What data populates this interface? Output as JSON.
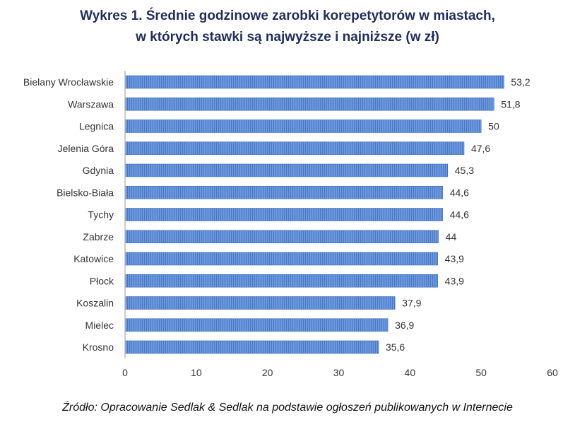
{
  "chart_data": {
    "type": "bar",
    "orientation": "horizontal",
    "title_line1": "Wykres 1. Średnie godzinowe zarobki korepetytorów w miastach,",
    "title_line2": "w których stawki są najwyższe i najniższe (w zł)",
    "categories": [
      "Bielany Wrocławskie",
      "Warszawa",
      "Legnica",
      "Jelenia Góra",
      "Gdynia",
      "Bielsko-Biała",
      "Tychy",
      "Zabrze",
      "Katowice",
      "Płock",
      "Koszalin",
      "Mielec",
      "Krosno"
    ],
    "values": [
      53.2,
      51.8,
      50,
      47.6,
      45.3,
      44.6,
      44.6,
      44,
      43.9,
      43.9,
      37.9,
      36.9,
      35.6
    ],
    "value_labels": [
      "53,2",
      "51,8",
      "50",
      "47,6",
      "45,3",
      "44,6",
      "44,6",
      "44",
      "43,9",
      "43,9",
      "37,9",
      "36,9",
      "35,6"
    ],
    "xlim": [
      0,
      60
    ],
    "x_ticks": [
      0,
      10,
      20,
      30,
      40,
      50,
      60
    ],
    "grid": false,
    "bar_color": "#5b8bd6",
    "title_color": "#1f2d5c",
    "source": "Źródło: Opracowanie Sedlak & Sedlak na podstawie ogłoszeń publikowanych w Internecie"
  }
}
